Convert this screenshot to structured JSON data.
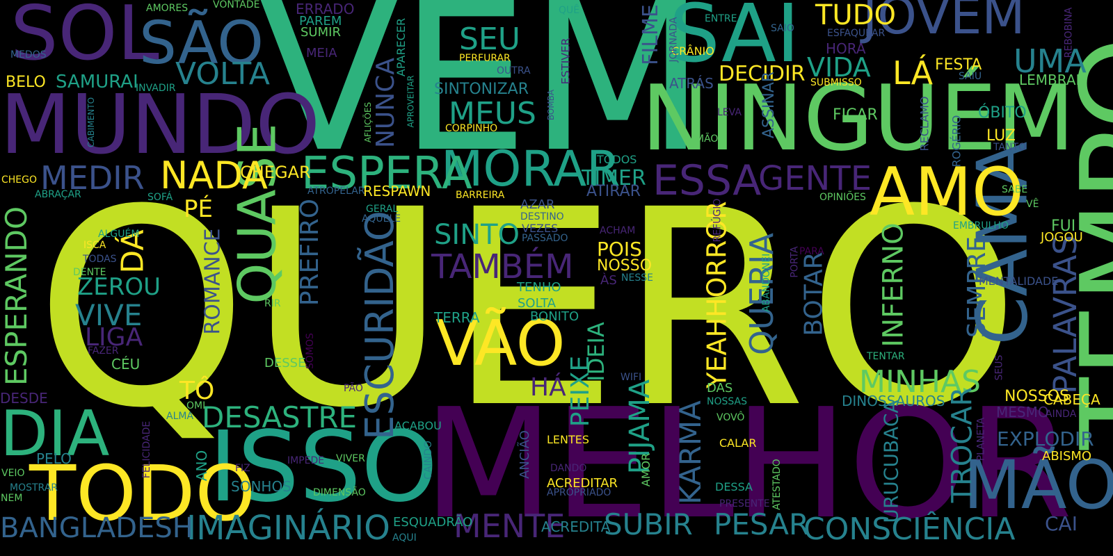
{
  "palette": {
    "c1": "#c2df23",
    "c2": "#440154",
    "c3": "#2db27d",
    "c4": "#3b528b",
    "c5": "#26828e",
    "c6": "#1fa187",
    "c7": "#5ec962",
    "c8": "#482677",
    "c9": "#fde725",
    "c10": "#33638d"
  },
  "words": [
    "QUERO",
    "VEM",
    "MELHOR",
    "NINGUÉM",
    "TEMPO",
    "MUNDO",
    "SAI",
    "SOL",
    "JOVEM",
    "ISSO",
    "CAMA",
    "MÃO",
    "TODO",
    "VÃO",
    "AMO",
    "QUASE",
    "DIA",
    "MORAR",
    "SÃO",
    "ESPERA",
    "ESCURIDÃO",
    "QUERIA",
    "ESSA",
    "NADA",
    "MEDIR",
    "PALAVRAS",
    "ESPERANDO",
    "MENTE",
    "IMAGINÁRIO",
    "CONSCIÊNCIA",
    "SUBIR",
    "PESAR",
    "BANGLADESH",
    "DESASTRE",
    "MINHAS",
    "VOLTA",
    "GENTE",
    "TAMBÉM",
    "SINTO",
    "MEUS",
    "SEU",
    "DÁ",
    "TÔ",
    "VIVE",
    "ZEROU",
    "LIGA",
    "PÉ",
    "PREFIRO",
    "YEAHHORROR",
    "PIJAMA",
    "KARMA",
    "PEIXE",
    "IDEIA",
    "INFERNO",
    "SEMPRE",
    "BOTAR",
    "NUNCA",
    "UMA",
    "LÁ",
    "TUDO",
    "VIDA",
    "DECIDIR",
    "TROCAR",
    "URUCUBACA",
    "EXPLODIR",
    "CAI",
    "ROMANCE",
    "FILME",
    "HÁ",
    "SAMURAI",
    "BELO",
    "CHEGAR",
    "TIMER",
    "ATIRAR",
    "POIS",
    "NOSSO",
    "RESPAWN",
    "FICAR",
    "LUZ",
    "ÓBITO",
    "FESTA",
    "LEMBRAR",
    "FUI",
    "JOGOU",
    "NOSSOS",
    "MESMO",
    "ASSINAR",
    "SINTONIZAR",
    "ATRÁS",
    "HORA",
    "CRÂNIO",
    "DINOSSAUROS",
    "TERRA",
    "BONITO",
    "SOLTA",
    "TENHO",
    "ERRADO",
    "PAREM",
    "SUMIR",
    "MEIA",
    "AMORES",
    "VONTADE",
    "APARECER",
    "ESTIVER",
    "JORNADA",
    "ENTRE",
    "SAIO",
    "ESFAQUEAR",
    "REBOBINA",
    "PERFURAR",
    "OUTRA",
    "INVADIR",
    "MEDOS",
    "CORPINHO",
    "TODOS",
    "CABIMENTO",
    "AFLIÇÕES",
    "APROVEITAR",
    "BOMBA",
    "LEVA",
    "MÃOS",
    "RECLAMO",
    "ROGÉRIO",
    "TANTO",
    "SUBMISSO",
    "SAIU",
    "QUÊ",
    "CHEGO",
    "ABRAÇAR",
    "SOFÁ",
    "ATROPELAR",
    "BARREIRA",
    "GERAL",
    "AQUELE",
    "AZAR",
    "DESTINO",
    "VEZES",
    "PASSADO",
    "ACHAM",
    "OPINIÕES",
    "SABE",
    "VÊ",
    "EMBRULHO",
    "REFÚGIO",
    "PARA",
    "PORTA",
    "ABANDONEI",
    "NESSE",
    "ÀS",
    "MENTALIDADE",
    "ALGUÉM",
    "ISCA",
    "TODAS",
    "DENTE",
    "RIR",
    "FAZER",
    "CÉU",
    "OMI",
    "DESSE",
    "SOMOS",
    "PÃO",
    "WIFI",
    "DAS",
    "NOSSAS",
    "VOVÔ",
    "TENTAR",
    "SEUS",
    "CABEÇA",
    "AINDA",
    "ABISMO",
    "PLANETA",
    "DESDE",
    "ALMA",
    "FELICIDADE",
    "PELO",
    "ANO",
    "VEIO",
    "MOSTRAR",
    "NEM",
    "FIZ",
    "IMPEDE",
    "VIVER",
    "SONHOS",
    "DIMENSÃO",
    "CAINDO",
    "ACABOU",
    "ESQUADRÃO",
    "AQUI",
    "ACREDITA",
    "ANCIÃO",
    "LENTES",
    "DANDO",
    "ACREDITAR",
    "APROPRIADO",
    "AMOR",
    "CALAR",
    "DESSA",
    "PRESENTE",
    "ATESTADO"
  ]
}
